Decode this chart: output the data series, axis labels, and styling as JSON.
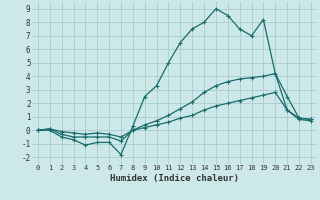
{
  "xlabel": "Humidex (Indice chaleur)",
  "background_color": "#cce8e8",
  "grid_color": "#aacccc",
  "line_color": "#1a6b6b",
  "xlim": [
    -0.5,
    23.5
  ],
  "ylim": [
    -2.5,
    9.5
  ],
  "xticks": [
    0,
    1,
    2,
    3,
    4,
    5,
    6,
    7,
    8,
    9,
    10,
    11,
    12,
    13,
    14,
    15,
    16,
    17,
    18,
    19,
    20,
    21,
    22,
    23
  ],
  "yticks": [
    -2,
    -1,
    0,
    1,
    2,
    3,
    4,
    5,
    6,
    7,
    8,
    9
  ],
  "series1": [
    0.0,
    0.0,
    -0.5,
    -0.7,
    -1.1,
    -0.9,
    -0.9,
    -1.8,
    0.3,
    2.5,
    3.3,
    5.0,
    6.5,
    7.5,
    8.0,
    9.0,
    8.5,
    7.5,
    7.0,
    8.2,
    4.2,
    1.5,
    0.9,
    0.8
  ],
  "series2": [
    0.0,
    0.1,
    -0.3,
    -0.5,
    -0.5,
    -0.5,
    -0.5,
    -0.8,
    0.0,
    0.4,
    0.7,
    1.1,
    1.6,
    2.1,
    2.8,
    3.3,
    3.6,
    3.8,
    3.9,
    4.0,
    4.2,
    2.5,
    0.9,
    0.8
  ],
  "series3": [
    0.0,
    0.1,
    -0.1,
    -0.2,
    -0.3,
    -0.2,
    -0.3,
    -0.5,
    0.0,
    0.2,
    0.4,
    0.6,
    0.9,
    1.1,
    1.5,
    1.8,
    2.0,
    2.2,
    2.4,
    2.6,
    2.8,
    1.5,
    0.8,
    0.7
  ]
}
